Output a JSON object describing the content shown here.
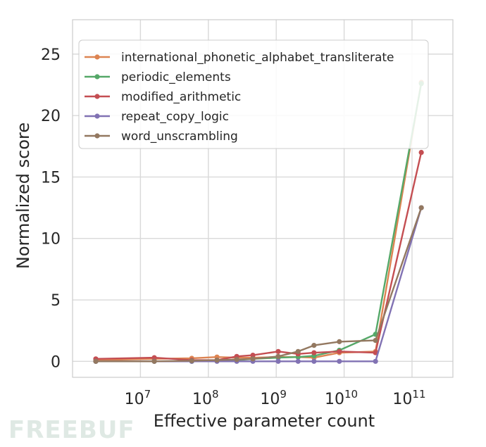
{
  "watermark": "FREEBUF",
  "chart_data": {
    "type": "line",
    "xscale": "log",
    "xlabel": "Effective parameter count",
    "ylabel": "Normalized score",
    "xlim": [
      1000000,
      400000000000
    ],
    "ylim": [
      -1.3,
      27.8
    ],
    "xticks": [
      {
        "value": 10000000,
        "base": "10",
        "exp": "7"
      },
      {
        "value": 100000000,
        "base": "10",
        "exp": "8"
      },
      {
        "value": 1000000000,
        "base": "10",
        "exp": "9"
      },
      {
        "value": 10000000000,
        "base": "10",
        "exp": "10"
      },
      {
        "value": 100000000000,
        "base": "10",
        "exp": "11"
      }
    ],
    "yticks": [
      0,
      5,
      10,
      15,
      20,
      25
    ],
    "grid": true,
    "legend_position": "top-left",
    "x": [
      2200000,
      16000000,
      57000000,
      134000000,
      262000000,
      453000000,
      1070000000,
      2100000000,
      3600000000,
      8500000000,
      29000000000,
      137000000000
    ],
    "series": [
      {
        "name": "international_phonetic_alphabet_transliterate",
        "color": "#dd8452",
        "values": [
          0.1,
          0.2,
          0.25,
          0.35,
          0.3,
          0.3,
          0.35,
          0.35,
          0.3,
          0.7,
          0.8,
          22.7
        ]
      },
      {
        "name": "periodic_elements",
        "color": "#55a868",
        "values": [
          0.0,
          0.0,
          0.0,
          0.05,
          0.1,
          0.2,
          0.3,
          0.35,
          0.45,
          0.9,
          2.2,
          22.6
        ]
      },
      {
        "name": "modified_arithmetic",
        "color": "#c44e52",
        "values": [
          0.2,
          0.3,
          0.1,
          0.1,
          0.4,
          0.5,
          0.8,
          0.6,
          0.7,
          0.8,
          0.7,
          17.0
        ]
      },
      {
        "name": "repeat_copy_logic",
        "color": "#8172b3",
        "values": [
          0.0,
          0.0,
          0.0,
          0.0,
          0.0,
          0.0,
          0.0,
          0.0,
          0.0,
          0.0,
          0.0,
          12.5
        ]
      },
      {
        "name": "word_unscrambling",
        "color": "#937860",
        "values": [
          0.0,
          0.0,
          0.05,
          0.1,
          0.15,
          0.2,
          0.4,
          0.8,
          1.3,
          1.6,
          1.7,
          12.5
        ]
      }
    ]
  }
}
